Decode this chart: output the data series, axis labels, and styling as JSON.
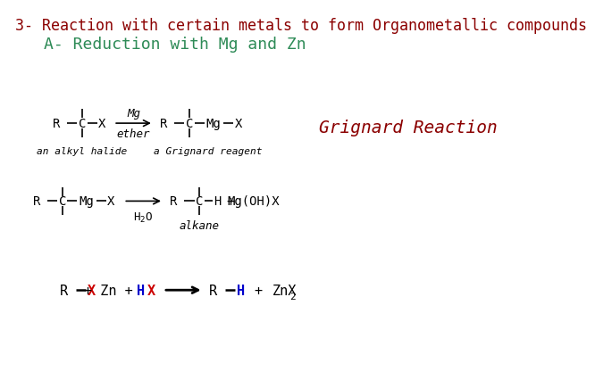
{
  "title": "3- Reaction with certain metals to form Organometallic compounds",
  "subtitle": "A- Reduction with Mg and Zn",
  "grignard_label": "Grignard Reaction",
  "title_color": "#8B0000",
  "subtitle_color": "#2E8B57",
  "grignard_color": "#8B0000",
  "bg_color": "#ffffff",
  "black": "#000000",
  "red": "#cc0000",
  "blue": "#0000cc"
}
